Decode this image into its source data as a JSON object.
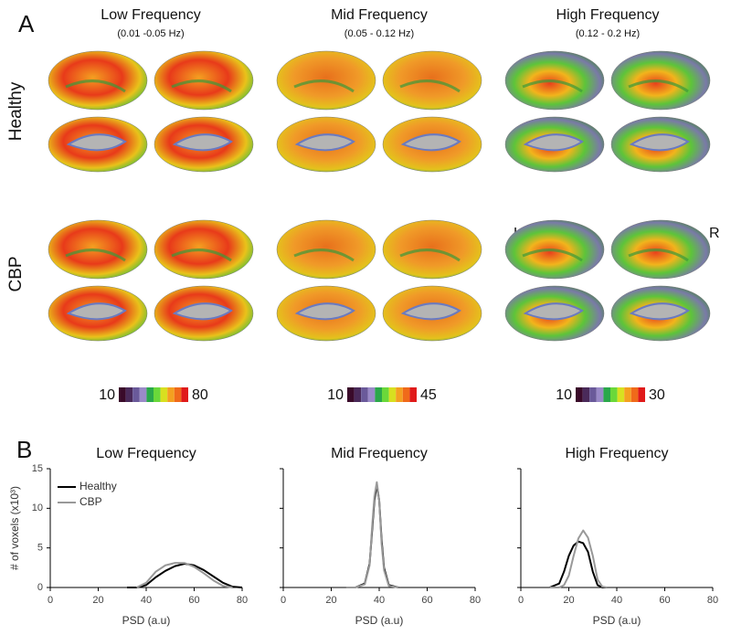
{
  "panel_a": {
    "label": "A",
    "rows": [
      "Healthy",
      "CBP"
    ],
    "hemisphere_labels": [
      "L",
      "R"
    ],
    "columns": [
      {
        "title": "Low Frequency",
        "subtitle": "(0.01 -0.05 Hz)",
        "colorbar": {
          "min": 10,
          "max": 80
        }
      },
      {
        "title": "Mid Frequency",
        "subtitle": "(0.05 - 0.12 Hz)",
        "colorbar": {
          "min": 10,
          "max": 45
        }
      },
      {
        "title": "High Frequency",
        "subtitle": "(0.12 - 0.2 Hz)",
        "colorbar": {
          "min": 10,
          "max": 30
        }
      }
    ]
  },
  "panel_b": {
    "label": "B"
  },
  "chart_data": [
    {
      "type": "line",
      "title": "Low Frequency",
      "x_label": "PSD (a.u)",
      "y_label": "# of voxels (x10³)",
      "xlim": [
        0,
        80
      ],
      "ylim": [
        0,
        15
      ],
      "xticks": [
        0,
        20,
        40,
        60,
        80
      ],
      "yticks": [
        0,
        5,
        10,
        15
      ],
      "x": [
        32,
        36,
        40,
        44,
        48,
        52,
        56,
        60,
        64,
        68,
        72,
        76,
        80
      ],
      "series": [
        {
          "name": "Healthy",
          "color": "#000000",
          "values": [
            0,
            0,
            0.3,
            1.3,
            2.1,
            2.7,
            3,
            2.8,
            2.2,
            1.4,
            0.6,
            0.1,
            0
          ]
        },
        {
          "name": "CBP",
          "color": "#999999",
          "values": [
            null,
            0,
            0.6,
            2,
            2.8,
            3.1,
            3.1,
            2.6,
            1.8,
            0.9,
            0.2,
            0,
            null
          ]
        }
      ]
    },
    {
      "type": "line",
      "title": "Mid Frequency",
      "x_label": "PSD (a.u)",
      "xlim": [
        0,
        80
      ],
      "ylim": [
        0,
        15
      ],
      "xticks": [
        0,
        20,
        40,
        60,
        80
      ],
      "yticks": [
        0,
        5,
        10,
        15
      ],
      "x": [
        26,
        30,
        34,
        36,
        37,
        38,
        39,
        40,
        41,
        42,
        44,
        48
      ],
      "series": [
        {
          "color": "#000000",
          "values": [
            0,
            0,
            0.5,
            3,
            7,
            11,
            13,
            11,
            6,
            2.5,
            0.3,
            0
          ]
        },
        {
          "color": "#999999",
          "values": [
            0,
            0,
            0.4,
            2.8,
            7.5,
            11.5,
            13.3,
            11,
            5.5,
            2.2,
            0.2,
            0
          ]
        }
      ]
    },
    {
      "type": "line",
      "title": "High Frequency",
      "x_label": "PSD (a.u)",
      "xlim": [
        0,
        80
      ],
      "ylim": [
        0,
        15
      ],
      "xticks": [
        0,
        20,
        40,
        60,
        80
      ],
      "yticks": [
        0,
        5,
        10,
        15
      ],
      "x": [
        12,
        16,
        18,
        20,
        22,
        24,
        26,
        28,
        30,
        32,
        34,
        36
      ],
      "series": [
        {
          "color": "#000000",
          "values": [
            0,
            0.5,
            2,
            4,
            5.3,
            5.8,
            5.6,
            4.5,
            2,
            0.3,
            0,
            0
          ]
        },
        {
          "color": "#999999",
          "values": [
            0,
            0,
            0.3,
            1.5,
            4,
            6.2,
            7.2,
            6.3,
            4,
            1,
            0.1,
            0
          ]
        }
      ]
    }
  ]
}
